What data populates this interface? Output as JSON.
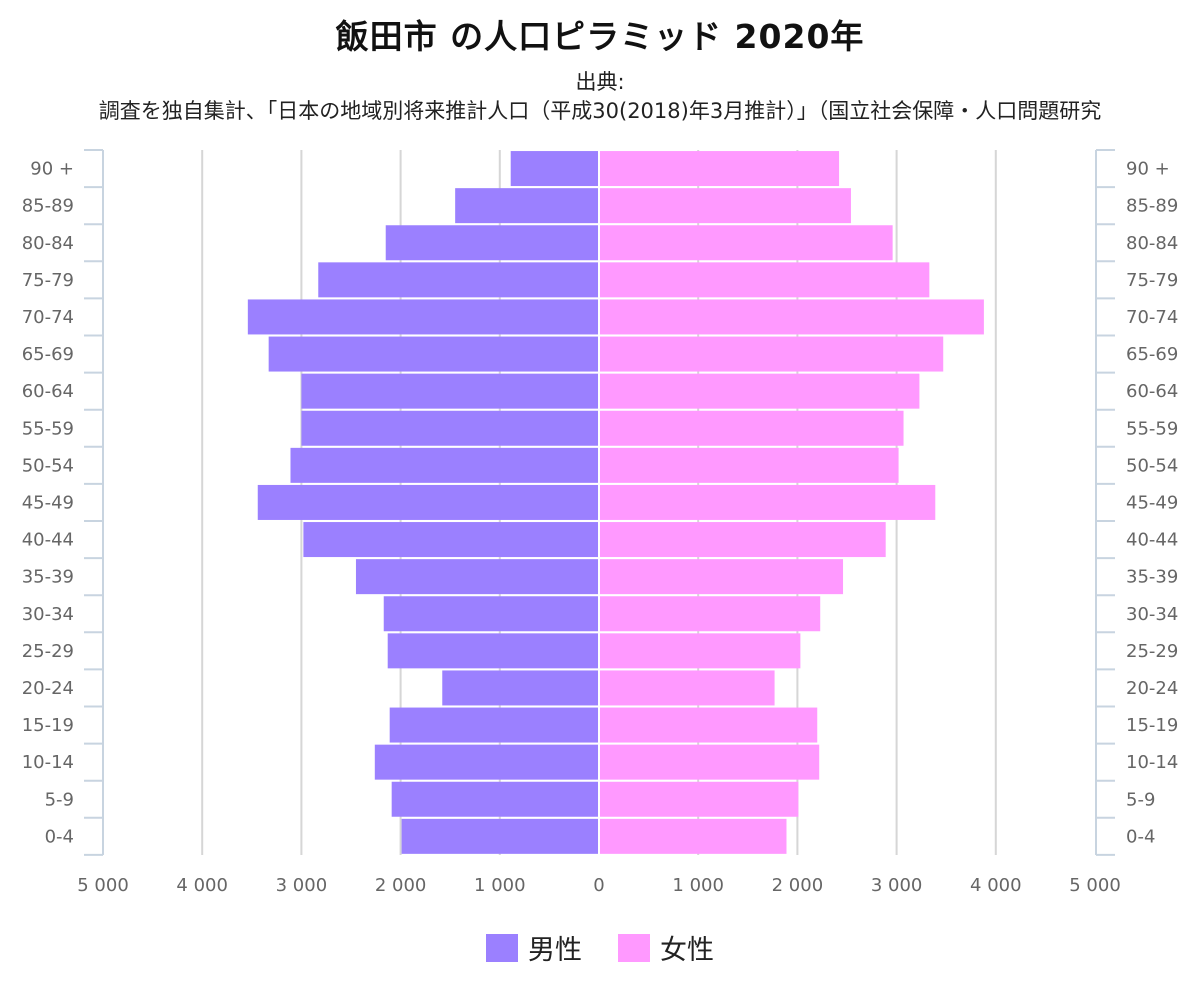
{
  "title": "飯田市 の人口ピラミッド 2020年",
  "source_label": "出典:",
  "source_text": "調査を独自集計、「日本の地域別将来推計人口（平成30(2018)年3月推計）」（国立社会保障・人口問題研究",
  "chart_data": {
    "type": "bar",
    "orientation": "horizontal",
    "subtype": "population-pyramid",
    "categories": [
      "90 +",
      "85-89",
      "80-84",
      "75-79",
      "70-74",
      "65-69",
      "60-64",
      "55-59",
      "50-54",
      "45-49",
      "40-44",
      "35-39",
      "30-34",
      "25-29",
      "20-24",
      "15-19",
      "10-14",
      "5-9",
      "0-4"
    ],
    "series": [
      {
        "name": "男性",
        "color": "#9b80ff",
        "side": "left",
        "values": [
          890,
          1450,
          2150,
          2830,
          3540,
          3330,
          3000,
          3000,
          3110,
          3440,
          2980,
          2450,
          2170,
          2130,
          1580,
          2110,
          2260,
          2090,
          1990
        ]
      },
      {
        "name": "女性",
        "color": "#ff99ff",
        "side": "right",
        "values": [
          2420,
          2540,
          2960,
          3330,
          3880,
          3470,
          3230,
          3070,
          3020,
          3390,
          2890,
          2460,
          2230,
          2030,
          1770,
          2200,
          2220,
          2010,
          1890
        ]
      }
    ],
    "x_ticks": [
      "5 000",
      "4 000",
      "3 000",
      "2 000",
      "1 000",
      "0",
      "1 000",
      "2 000",
      "3 000",
      "4 000",
      "5 000"
    ],
    "xlim": [
      -5000,
      5000
    ],
    "grid": true,
    "legend_position": "bottom"
  }
}
